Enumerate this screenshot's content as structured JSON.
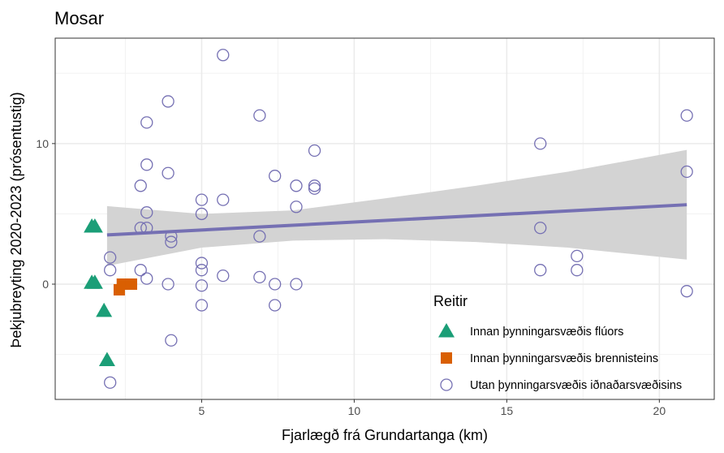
{
  "chart_data": {
    "type": "scatter",
    "title": "Mosar",
    "xlabel": "Fjarlægð frá Grundartanga (km)",
    "ylabel": "Þekjubreyting 2020-2023 (prósentustig)",
    "xlim": [
      0.2,
      21.8
    ],
    "ylim": [
      -8.2,
      17.5
    ],
    "x_ticks": [
      5,
      10,
      15,
      20
    ],
    "y_ticks": [
      0,
      10
    ],
    "grid": true,
    "legend": {
      "title": "Reitir",
      "position": "bottom-right inside"
    },
    "series": [
      {
        "name": "Innan þynningarsvæðis flúors",
        "marker": "triangle",
        "color": "#1b9e77",
        "points": [
          [
            1.4,
            4.1
          ],
          [
            1.5,
            4.1
          ],
          [
            1.4,
            0.1
          ],
          [
            1.5,
            0.1
          ],
          [
            1.8,
            -1.9
          ],
          [
            1.9,
            -5.4
          ]
        ]
      },
      {
        "name": "Innan þynningarsvæðis brennisteins",
        "marker": "square",
        "color": "#d95f02",
        "points": [
          [
            2.3,
            -0.4
          ],
          [
            2.4,
            0.0
          ],
          [
            2.7,
            0.0
          ]
        ]
      },
      {
        "name": "Utan þynningarsvæðis iðnaðarsvæðisins",
        "marker": "circle-open",
        "color": "#7570b3",
        "points": [
          [
            2.0,
            1.9
          ],
          [
            2.0,
            1.0
          ],
          [
            2.0,
            -7.0
          ],
          [
            3.0,
            7.0
          ],
          [
            3.0,
            4.0
          ],
          [
            3.0,
            1.0
          ],
          [
            3.2,
            11.5
          ],
          [
            3.2,
            8.5
          ],
          [
            3.2,
            5.1
          ],
          [
            3.2,
            4.0
          ],
          [
            3.2,
            0.4
          ],
          [
            3.9,
            13.0
          ],
          [
            3.9,
            7.9
          ],
          [
            3.9,
            0.0
          ],
          [
            4.0,
            3.4
          ],
          [
            4.0,
            3.0
          ],
          [
            4.0,
            -4.0
          ],
          [
            5.0,
            6.0
          ],
          [
            5.0,
            5.0
          ],
          [
            5.0,
            1.5
          ],
          [
            5.0,
            1.0
          ],
          [
            5.0,
            -0.1
          ],
          [
            5.0,
            -1.5
          ],
          [
            5.7,
            16.3
          ],
          [
            5.7,
            6.0
          ],
          [
            5.7,
            0.6
          ],
          [
            6.9,
            12.0
          ],
          [
            6.9,
            3.4
          ],
          [
            6.9,
            0.5
          ],
          [
            7.4,
            7.7
          ],
          [
            7.4,
            0.0
          ],
          [
            7.4,
            -1.5
          ],
          [
            8.1,
            7.0
          ],
          [
            8.1,
            5.5
          ],
          [
            8.1,
            0.0
          ],
          [
            8.7,
            9.5
          ],
          [
            8.7,
            7.0
          ],
          [
            8.7,
            6.8
          ],
          [
            16.1,
            10.0
          ],
          [
            16.1,
            4.0
          ],
          [
            16.1,
            1.0
          ],
          [
            17.3,
            2.0
          ],
          [
            17.3,
            1.0
          ],
          [
            20.9,
            12.0
          ],
          [
            20.9,
            8.0
          ],
          [
            20.9,
            -0.5
          ]
        ]
      }
    ],
    "trend_line": {
      "type": "linear fit with confidence band",
      "color": "#7570b3",
      "band_color": "#d3d3d3",
      "line": [
        [
          1.9,
          3.5
        ],
        [
          20.9,
          5.65
        ]
      ],
      "band": [
        [
          1.9,
          1.3,
          5.55
        ],
        [
          5.0,
          2.6,
          5.0
        ],
        [
          8.0,
          3.1,
          5.25
        ],
        [
          11.0,
          3.2,
          6.1
        ],
        [
          14.0,
          3.0,
          7.0
        ],
        [
          17.0,
          2.6,
          8.0
        ],
        [
          20.9,
          1.75,
          9.55
        ]
      ]
    }
  }
}
